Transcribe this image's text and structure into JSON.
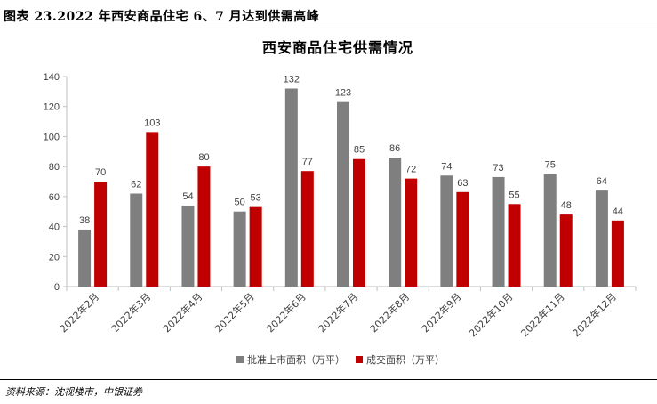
{
  "figure": {
    "label": "图表 23.2022 年西安商品住宅 6、7 月达到供需高峰",
    "source": "资料来源：沈视楼市，中银证券"
  },
  "chart_data": {
    "type": "bar",
    "title": "西安商品住宅供需情况",
    "xlabel": "",
    "ylabel": "",
    "ylim": [
      0,
      140
    ],
    "yticks": [
      0,
      20,
      40,
      60,
      80,
      100,
      120,
      140
    ],
    "grid": false,
    "legend_position": "bottom",
    "categories": [
      "2022年2月",
      "2022年3月",
      "2022年4月",
      "2022年5月",
      "2022年6月",
      "2022年7月",
      "2022年8月",
      "2022年9月",
      "2022年10月",
      "2022年11月",
      "2022年12月"
    ],
    "series": [
      {
        "name": "批准上市面积（万平）",
        "color": "#7f7f7f",
        "values": [
          38,
          62,
          54,
          50,
          132,
          123,
          86,
          74,
          73,
          75,
          64
        ]
      },
      {
        "name": "成交面积（万平）",
        "color": "#c00000",
        "values": [
          70,
          103,
          80,
          53,
          77,
          85,
          72,
          63,
          55,
          48,
          44
        ]
      }
    ]
  }
}
